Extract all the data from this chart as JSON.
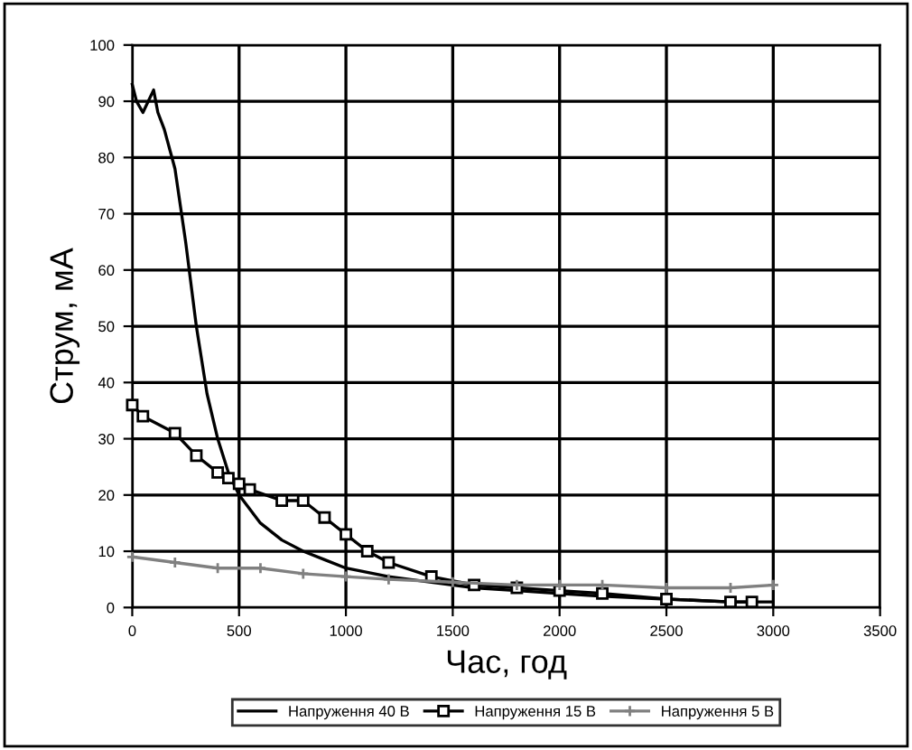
{
  "chart_data": {
    "type": "line",
    "xlabel": "Час, год",
    "ylabel": "Струм, мА",
    "xlim": [
      0,
      3500
    ],
    "xticks": [
      0,
      500,
      1000,
      1500,
      2000,
      2500,
      3000,
      3500
    ],
    "ylim": [
      0,
      100
    ],
    "yticks": [
      0,
      10,
      20,
      30,
      40,
      50,
      60,
      70,
      80,
      90,
      100
    ],
    "grid": true,
    "legend": "bottom",
    "series": [
      {
        "name": "Напруження 40 В",
        "color": "#000000",
        "marker": "none",
        "x": [
          0,
          20,
          50,
          100,
          120,
          150,
          200,
          250,
          300,
          350,
          400,
          450,
          500,
          600,
          700,
          800,
          900,
          1000,
          1200,
          1400,
          1600,
          1800,
          2000,
          2200,
          2500,
          2800,
          3000
        ],
        "values": [
          93,
          90,
          88,
          92,
          88,
          85,
          78,
          65,
          50,
          38,
          30,
          24,
          20,
          15,
          12,
          10,
          8.5,
          7,
          5.5,
          4.5,
          3.5,
          3,
          2.5,
          2,
          1.5,
          1,
          1
        ]
      },
      {
        "name": "Напруження 15 В",
        "color": "#000000",
        "marker": "square",
        "x": [
          0,
          50,
          200,
          300,
          400,
          450,
          500,
          550,
          700,
          800,
          900,
          1000,
          1100,
          1200,
          1400,
          1600,
          1800,
          2000,
          2200,
          2500,
          2800,
          2900
        ],
        "values": [
          36,
          34,
          31,
          27,
          24,
          23,
          22,
          21,
          19,
          19,
          16,
          13,
          10,
          8,
          5.5,
          4,
          3.5,
          3,
          2.5,
          1.5,
          1,
          1
        ]
      },
      {
        "name": "Напруження 5 В",
        "color": "#808080",
        "marker": "cross",
        "x": [
          0,
          200,
          400,
          600,
          800,
          1000,
          1200,
          1500,
          1800,
          2000,
          2200,
          2500,
          2800,
          3000
        ],
        "values": [
          9,
          8,
          7,
          7,
          6,
          5.5,
          5,
          4.5,
          4,
          4,
          4,
          3.5,
          3.5,
          4
        ]
      }
    ]
  }
}
